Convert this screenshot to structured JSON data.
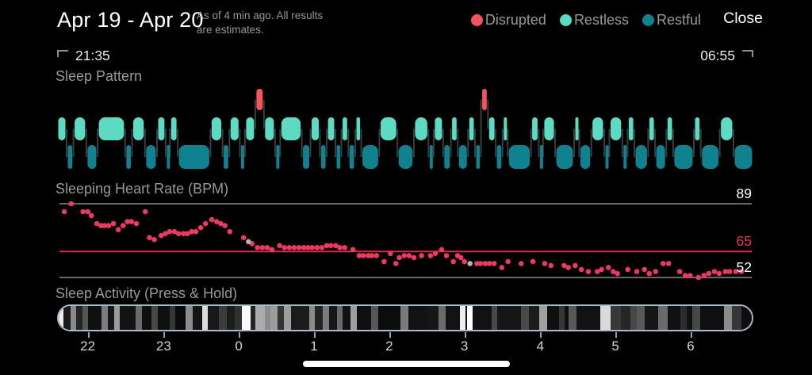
{
  "header": {
    "title": "Apr 19 - Apr 20",
    "subtitle": "As of 4 min ago. All results are estimates.",
    "close_label": "Close",
    "legend": [
      {
        "label": "Disrupted",
        "color": "#f4545e"
      },
      {
        "label": "Restless",
        "color": "#5cdbc2"
      },
      {
        "label": "Restful",
        "color": "#10818f"
      }
    ]
  },
  "time_range": {
    "start": "21:35",
    "end": "06:55"
  },
  "sections": {
    "sleep_pattern_title": "Sleep Pattern",
    "heart_rate_title": "Sleeping Heart Rate (BPM)",
    "sleep_activity_title": "Sleep Activity (Press & Hold)"
  },
  "chart_data": [
    {
      "id": "sleep_pattern",
      "type": "bar",
      "title": "Sleep Pattern",
      "x_range": [
        "21:35",
        "06:55"
      ],
      "states": {
        "D": {
          "name": "Disrupted",
          "color": "#f4545e"
        },
        "R": {
          "name": "Restless",
          "color": "#5cdbc2"
        },
        "F": {
          "name": "Restful",
          "color": "#10818f"
        }
      },
      "connector_color": "#3c3c3f",
      "segments": [
        [
          "R",
          11
        ],
        [
          "F",
          8
        ],
        [
          "R",
          15
        ],
        [
          "F",
          13
        ],
        [
          "R",
          32
        ],
        [
          "F",
          8
        ],
        [
          "R",
          15
        ],
        [
          "F",
          14
        ],
        [
          "R",
          10
        ],
        [
          "F",
          5
        ],
        [
          "R",
          9
        ],
        [
          "F",
          38
        ],
        [
          "R",
          14
        ],
        [
          "F",
          8
        ],
        [
          "R",
          12
        ],
        [
          "F",
          6
        ],
        [
          "R",
          12
        ],
        [
          "D",
          10
        ],
        [
          "R",
          13
        ],
        [
          "F",
          6
        ],
        [
          "R",
          25
        ],
        [
          "F",
          10
        ],
        [
          "R",
          11
        ],
        [
          "F",
          8
        ],
        [
          "R",
          10
        ],
        [
          "F",
          7
        ],
        [
          "R",
          8
        ],
        [
          "F",
          8
        ],
        [
          "R",
          7
        ],
        [
          "F",
          21
        ],
        [
          "R",
          21
        ],
        [
          "F",
          19
        ],
        [
          "R",
          17
        ],
        [
          "F",
          6
        ],
        [
          "R",
          11
        ],
        [
          "F",
          9
        ],
        [
          "R",
          8
        ],
        [
          "F",
          12
        ],
        [
          "R",
          8
        ],
        [
          "F",
          7
        ],
        [
          "D",
          8
        ],
        [
          "R",
          9
        ],
        [
          "F",
          8
        ],
        [
          "R",
          6
        ],
        [
          "F",
          27
        ],
        [
          "R",
          9
        ],
        [
          "F",
          5
        ],
        [
          "R",
          14
        ],
        [
          "F",
          22
        ],
        [
          "R",
          6
        ],
        [
          "F",
          14
        ],
        [
          "R",
          15
        ],
        [
          "F",
          6
        ],
        [
          "R",
          15
        ],
        [
          "F",
          6
        ],
        [
          "R",
          8
        ],
        [
          "F",
          16
        ],
        [
          "R",
          8
        ],
        [
          "F",
          13
        ],
        [
          "R",
          8
        ],
        [
          "F",
          24
        ],
        [
          "R",
          8
        ],
        [
          "F",
          22
        ],
        [
          "R",
          16
        ],
        [
          "F",
          23
        ]
      ]
    },
    {
      "id": "heart_rate",
      "type": "scatter",
      "title": "Sleeping Heart Rate (BPM)",
      "ylabel": "BPM",
      "y_range": [
        52,
        89
      ],
      "x_range": [
        "21:35",
        "06:55"
      ],
      "point_color": "#ea3a5f",
      "gray_point_color": "#b2b2b7",
      "ref_lines": [
        {
          "value": 89,
          "label": "89",
          "line_color": "#66666b",
          "label_color": "#ffffff"
        },
        {
          "value": 65,
          "label": "65",
          "line_color": "#dd2a4c",
          "label_color": "#e8345a"
        },
        {
          "value": 52,
          "label": "52",
          "line_color": "#66666b",
          "label_color": "#ffffff"
        }
      ],
      "points": [
        [
          0.7,
          85
        ],
        [
          1.7,
          89
        ],
        [
          3.4,
          85
        ],
        [
          4.1,
          85
        ],
        [
          4.6,
          83
        ],
        [
          5.4,
          79
        ],
        [
          6.0,
          78
        ],
        [
          6.5,
          78
        ],
        [
          7.1,
          78
        ],
        [
          7.8,
          79
        ],
        [
          8.5,
          76
        ],
        [
          9.2,
          78
        ],
        [
          9.8,
          80
        ],
        [
          10.4,
          80
        ],
        [
          11.1,
          79
        ],
        [
          12.4,
          85
        ],
        [
          13.0,
          72
        ],
        [
          13.7,
          71
        ],
        [
          14.7,
          73
        ],
        [
          15.3,
          74
        ],
        [
          15.9,
          75
        ],
        [
          16.6,
          75
        ],
        [
          17.2,
          74
        ],
        [
          17.9,
          74
        ],
        [
          18.5,
          74
        ],
        [
          19.1,
          75
        ],
        [
          19.7,
          75
        ],
        [
          20.4,
          77
        ],
        [
          21.1,
          79
        ],
        [
          22.0,
          81
        ],
        [
          22.7,
          80
        ],
        [
          23.3,
          79
        ],
        [
          23.9,
          78
        ],
        [
          24.6,
          75
        ],
        [
          26.6,
          72
        ],
        [
          27.8,
          69
        ],
        [
          28.6,
          67
        ],
        [
          29.3,
          67
        ],
        [
          30.0,
          67
        ],
        [
          30.7,
          66
        ],
        [
          31.8,
          68
        ],
        [
          32.5,
          67
        ],
        [
          33.2,
          67
        ],
        [
          33.9,
          67
        ],
        [
          34.6,
          67
        ],
        [
          35.3,
          67
        ],
        [
          35.9,
          67
        ],
        [
          36.5,
          67
        ],
        [
          37.2,
          67
        ],
        [
          37.9,
          67
        ],
        [
          38.6,
          68
        ],
        [
          39.2,
          68
        ],
        [
          39.9,
          68
        ],
        [
          40.5,
          67
        ],
        [
          41.2,
          67
        ],
        [
          42.4,
          66
        ],
        [
          43.3,
          63
        ],
        [
          43.9,
          63
        ],
        [
          44.6,
          63
        ],
        [
          45.1,
          63
        ],
        [
          45.8,
          63
        ],
        [
          46.9,
          60
        ],
        [
          47.8,
          64
        ],
        [
          48.6,
          59
        ],
        [
          49.1,
          62
        ],
        [
          49.8,
          63
        ],
        [
          50.5,
          63
        ],
        [
          51.2,
          62
        ],
        [
          52.3,
          63
        ],
        [
          53.6,
          63
        ],
        [
          54.3,
          64
        ],
        [
          55.2,
          66
        ],
        [
          55.9,
          63
        ],
        [
          56.9,
          60
        ],
        [
          57.5,
          63
        ],
        [
          58.0,
          62
        ],
        [
          58.5,
          60
        ],
        [
          60.3,
          59
        ],
        [
          60.8,
          59
        ],
        [
          61.5,
          59
        ],
        [
          62.1,
          59
        ],
        [
          62.8,
          59
        ],
        [
          63.9,
          57
        ],
        [
          64.8,
          60
        ],
        [
          66.7,
          59
        ],
        [
          68.4,
          60
        ],
        [
          70.1,
          59
        ],
        [
          71.0,
          58
        ],
        [
          72.9,
          58
        ],
        [
          73.5,
          57
        ],
        [
          74.5,
          58
        ],
        [
          75.4,
          56
        ],
        [
          76.4,
          55
        ],
        [
          77.7,
          55
        ],
        [
          78.3,
          56
        ],
        [
          79.3,
          57
        ],
        [
          80.0,
          55
        ],
        [
          80.6,
          54
        ],
        [
          82.1,
          56
        ],
        [
          83.4,
          55
        ],
        [
          84.5,
          56
        ],
        [
          85.2,
          54
        ],
        [
          86.1,
          55
        ],
        [
          87.2,
          59
        ],
        [
          88.0,
          59
        ],
        [
          89.6,
          55
        ],
        [
          90.4,
          53
        ],
        [
          91.1,
          53
        ],
        [
          92.3,
          52
        ],
        [
          93.1,
          53
        ],
        [
          93.8,
          54
        ],
        [
          94.6,
          55
        ],
        [
          95.3,
          54
        ],
        [
          96.2,
          55
        ],
        [
          96.8,
          55
        ],
        [
          97.7,
          55
        ],
        [
          98.5,
          55
        ]
      ],
      "gray_points": [
        [
          27.3,
          70
        ],
        [
          59.3,
          59
        ]
      ]
    },
    {
      "id": "sleep_activity",
      "type": "heatmap",
      "title": "Sleep Activity (Press & Hold)",
      "x_range": [
        "21:35",
        "06:55"
      ],
      "hours": [
        [
          "22",
          4.4
        ],
        [
          "23",
          15.3
        ],
        [
          "0",
          26.1
        ],
        [
          "1",
          36.9
        ],
        [
          "2",
          47.7
        ],
        [
          "3",
          58.5
        ],
        [
          "4",
          69.4
        ],
        [
          "5",
          80.2
        ],
        [
          "6",
          91.0
        ]
      ],
      "bars": [
        [
          6,
          "#ececec"
        ],
        [
          9,
          "#1a1a1a"
        ],
        [
          7,
          "#8a8a8a"
        ],
        [
          8,
          "#242424"
        ],
        [
          7,
          "#555555"
        ],
        [
          17,
          "#101010"
        ],
        [
          8,
          "#7d7d7d"
        ],
        [
          8,
          "#181818"
        ],
        [
          7,
          "#9b9b9b"
        ],
        [
          20,
          "#131313"
        ],
        [
          8,
          "#6a6a6a"
        ],
        [
          12,
          "#0f0f0f"
        ],
        [
          8,
          "#474747"
        ],
        [
          15,
          "#0f0f0f"
        ],
        [
          7,
          "#363636"
        ],
        [
          13,
          "#0b0b0b"
        ],
        [
          9,
          "#8c8c8c"
        ],
        [
          12,
          "#141414"
        ],
        [
          7,
          "#dcdcdc"
        ],
        [
          14,
          "#181818"
        ],
        [
          10,
          "#3c3c3c"
        ],
        [
          10,
          "#1c1c1c"
        ],
        [
          9,
          "#303030"
        ],
        [
          11,
          "#fafafa"
        ],
        [
          6,
          "#242424"
        ],
        [
          12,
          "#ababab"
        ],
        [
          7,
          "#8d8d8d"
        ],
        [
          9,
          "#9c9c9c"
        ],
        [
          8,
          "#343434"
        ],
        [
          9,
          "#9d9d9d"
        ],
        [
          23,
          "#1b1b1b"
        ],
        [
          7,
          "#8b8b8b"
        ],
        [
          10,
          "#232323"
        ],
        [
          8,
          "#7b7b7b"
        ],
        [
          10,
          "#161616"
        ],
        [
          7,
          "#696969"
        ],
        [
          10,
          "#121212"
        ],
        [
          8,
          "#9e9e9e"
        ],
        [
          18,
          "#0f0f0f"
        ],
        [
          9,
          "#575757"
        ],
        [
          28,
          "#0c0c0c"
        ],
        [
          10,
          "#7a7a7a"
        ],
        [
          25,
          "#121212"
        ],
        [
          13,
          "#161616"
        ],
        [
          9,
          "#6b6b6b"
        ],
        [
          18,
          "#131313"
        ],
        [
          7,
          "#ededed"
        ],
        [
          2,
          "#0a0a0a"
        ],
        [
          7,
          "#fdfdfd"
        ],
        [
          24,
          "#121212"
        ],
        [
          7,
          "#474747"
        ],
        [
          30,
          "#161616"
        ],
        [
          10,
          "#484848"
        ],
        [
          13,
          "#1b1b1b"
        ],
        [
          10,
          "#a0a0a0"
        ],
        [
          15,
          "#0f0f0f"
        ],
        [
          7,
          "#363636"
        ],
        [
          5,
          "#0f0f0f"
        ],
        [
          10,
          "#585858"
        ],
        [
          30,
          "#121212"
        ],
        [
          13,
          "#dadada"
        ],
        [
          13,
          "#383838"
        ],
        [
          12,
          "#262626"
        ],
        [
          8,
          "#484848"
        ],
        [
          10,
          "#585858"
        ],
        [
          17,
          "#161616"
        ],
        [
          12,
          "#6a6a6a"
        ],
        [
          16,
          "#111111"
        ],
        [
          8,
          "#2c2c2c"
        ],
        [
          7,
          "#121212"
        ],
        [
          10,
          "#474747"
        ],
        [
          30,
          "#0f0f0f"
        ],
        [
          10,
          "#8b8b8b"
        ],
        [
          12,
          "#363636"
        ],
        [
          13,
          "#0e0e0e"
        ]
      ]
    }
  ]
}
